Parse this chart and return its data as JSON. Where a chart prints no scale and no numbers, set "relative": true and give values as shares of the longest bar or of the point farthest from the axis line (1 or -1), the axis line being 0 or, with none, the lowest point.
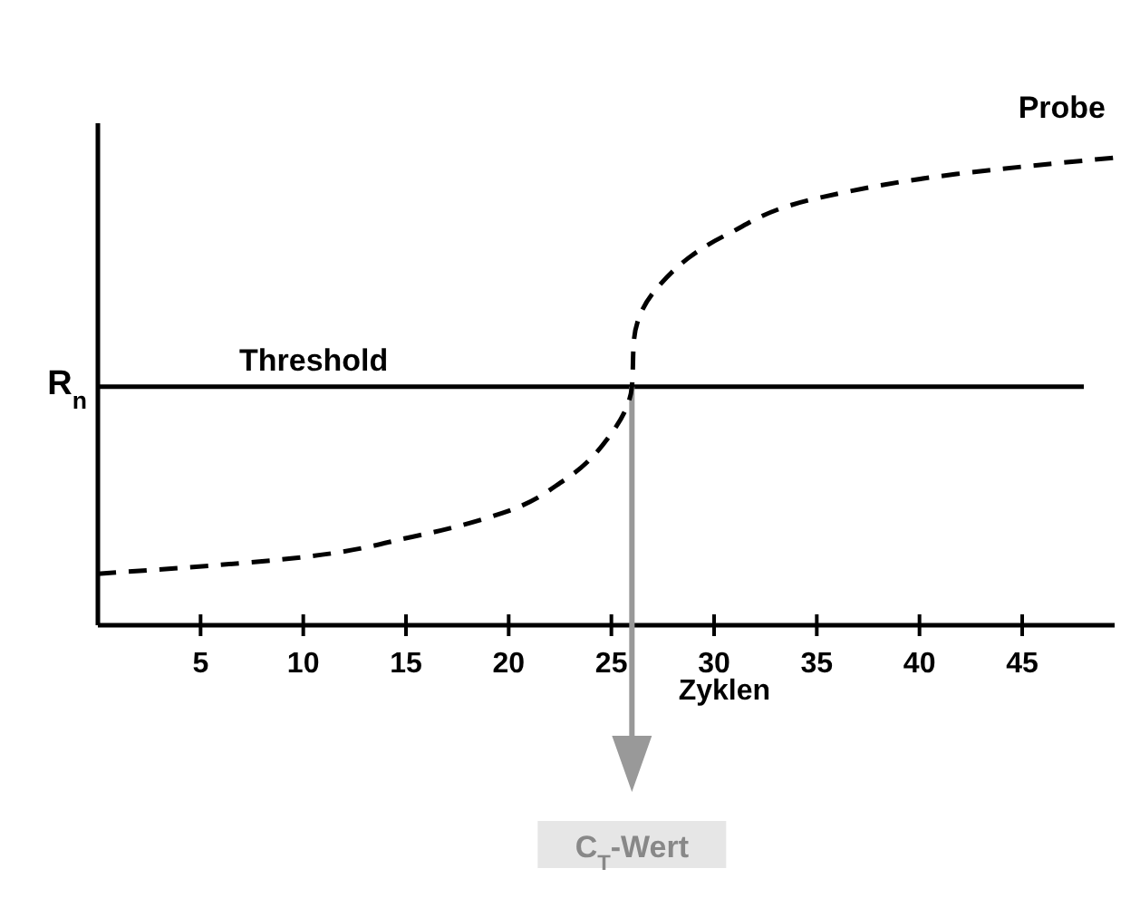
{
  "chart_data": {
    "type": "line",
    "relative": true,
    "xlabel": "Zyklen",
    "ylabel": "R$_{n}$",
    "xlim": [
      0,
      49.5
    ],
    "xticks": [
      5,
      10,
      15,
      20,
      25,
      30,
      35,
      40,
      45
    ],
    "line_style": "dashed",
    "marker": "none",
    "grid": false,
    "series": [
      {
        "name": "Probe",
        "color": "#000000",
        "x": [
          0,
          8.8,
          15.4,
          19.7,
          22.7,
          25,
          26,
          26.1,
          27.2,
          30.6,
          35.2,
          41.8,
          49.5
        ],
        "values": [
          0.11,
          0.14,
          0.19,
          0.24,
          0.31,
          0.41,
          0.51,
          0.61,
          0.72,
          0.835,
          0.915,
          0.965,
          1
        ]
      }
    ],
    "ref_lines": [
      {
        "axis": "y",
        "value": 0.51,
        "label": "Threshold",
        "color": "#000000",
        "line_style": "solid"
      }
    ],
    "annotations": [
      "C$_{T}$-Wert"
    ]
  }
}
